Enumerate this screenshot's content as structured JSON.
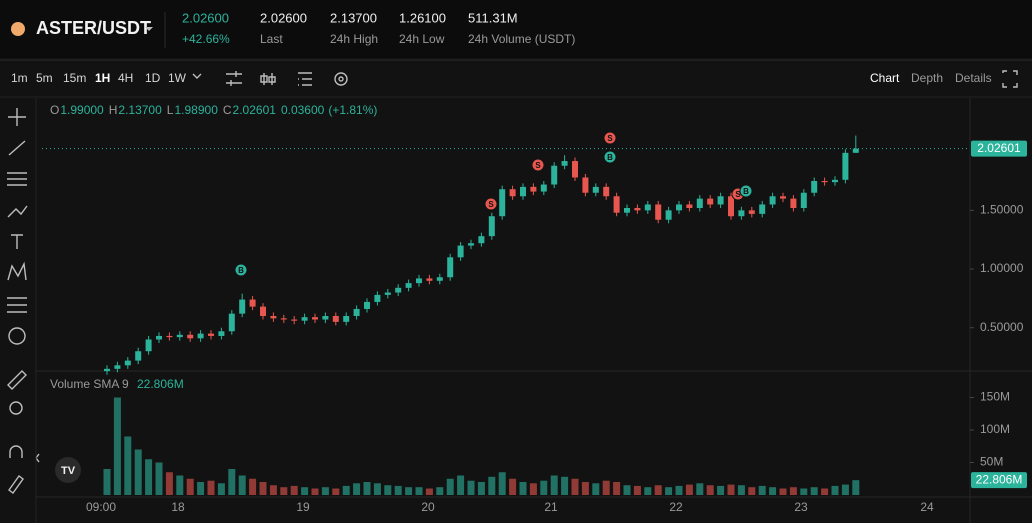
{
  "header": {
    "pair": "ASTER/USDT",
    "price": "2.02600",
    "change": "+42.66%",
    "stats": [
      {
        "value": "2.02600",
        "label": "Last"
      },
      {
        "value": "2.13700",
        "label": "24h High"
      },
      {
        "value": "1.26100",
        "label": "24h Low"
      },
      {
        "value": "511.31M",
        "label": "24h Volume (USDT)"
      }
    ]
  },
  "toolbar": {
    "intervals": [
      "1m",
      "5m",
      "15m",
      "1H",
      "4H",
      "1D",
      "1W"
    ],
    "views": [
      "Chart",
      "Depth",
      "Details"
    ]
  },
  "chart_data": {
    "type": "candlestick",
    "ohlc_legend": [
      {
        "key": "O",
        "value": "1.99000"
      },
      {
        "key": "H",
        "value": "2.13700"
      },
      {
        "key": "L",
        "value": "1.98900"
      },
      {
        "key": "C",
        "value": "2.02601"
      }
    ],
    "change": "0.03600",
    "change_pct": "(+1.81%)",
    "x_labels": [
      "09:00",
      "18",
      "19",
      "20",
      "21",
      "22",
      "23",
      "24"
    ],
    "open": [
      0.13,
      0.15,
      0.18,
      0.22,
      0.3,
      0.4,
      0.43,
      0.42,
      0.44,
      0.41,
      0.45,
      0.43,
      0.47,
      0.62,
      0.74,
      0.68,
      0.6,
      0.58,
      0.57,
      0.56,
      0.59,
      0.57,
      0.6,
      0.55,
      0.6,
      0.66,
      0.72,
      0.78,
      0.8,
      0.84,
      0.88,
      0.92,
      0.9,
      0.93,
      1.1,
      1.2,
      1.22,
      1.28,
      1.45,
      1.68,
      1.62,
      1.7,
      1.66,
      1.72,
      1.88,
      1.92,
      1.78,
      1.65,
      1.7,
      1.62,
      1.48,
      1.52,
      1.5,
      1.55,
      1.42,
      1.5,
      1.55,
      1.52,
      1.6,
      1.55,
      1.62,
      1.45,
      1.5,
      1.47,
      1.55,
      1.62,
      1.6,
      1.52,
      1.65,
      1.75,
      1.74,
      1.76,
      1.99
    ],
    "high": [
      0.18,
      0.21,
      0.25,
      0.33,
      0.43,
      0.46,
      0.46,
      0.47,
      0.47,
      0.48,
      0.48,
      0.5,
      0.65,
      0.79,
      0.77,
      0.71,
      0.63,
      0.61,
      0.6,
      0.62,
      0.62,
      0.63,
      0.63,
      0.63,
      0.69,
      0.75,
      0.81,
      0.83,
      0.87,
      0.91,
      0.95,
      0.95,
      0.96,
      1.13,
      1.23,
      1.25,
      1.31,
      1.48,
      1.71,
      1.71,
      1.73,
      1.73,
      1.75,
      1.91,
      1.97,
      1.95,
      1.81,
      1.73,
      1.73,
      1.65,
      1.55,
      1.55,
      1.58,
      1.58,
      1.53,
      1.58,
      1.58,
      1.63,
      1.63,
      1.65,
      1.65,
      1.53,
      1.53,
      1.58,
      1.65,
      1.65,
      1.63,
      1.68,
      1.78,
      1.78,
      1.79,
      2.02,
      2.137
    ],
    "low": [
      0.1,
      0.12,
      0.15,
      0.19,
      0.27,
      0.37,
      0.39,
      0.39,
      0.38,
      0.38,
      0.4,
      0.4,
      0.44,
      0.59,
      0.65,
      0.57,
      0.55,
      0.54,
      0.53,
      0.53,
      0.54,
      0.54,
      0.52,
      0.52,
      0.57,
      0.63,
      0.69,
      0.75,
      0.77,
      0.81,
      0.85,
      0.87,
      0.87,
      0.9,
      1.07,
      1.17,
      1.19,
      1.25,
      1.42,
      1.59,
      1.59,
      1.63,
      1.63,
      1.69,
      1.85,
      1.75,
      1.62,
      1.62,
      1.59,
      1.45,
      1.45,
      1.47,
      1.47,
      1.39,
      1.39,
      1.47,
      1.49,
      1.49,
      1.52,
      1.52,
      1.42,
      1.42,
      1.44,
      1.44,
      1.52,
      1.57,
      1.49,
      1.49,
      1.62,
      1.71,
      1.71,
      1.73,
      1.989
    ],
    "close": [
      0.15,
      0.18,
      0.22,
      0.3,
      0.4,
      0.43,
      0.42,
      0.44,
      0.41,
      0.45,
      0.43,
      0.47,
      0.62,
      0.74,
      0.68,
      0.6,
      0.58,
      0.57,
      0.56,
      0.59,
      0.57,
      0.6,
      0.55,
      0.6,
      0.66,
      0.72,
      0.78,
      0.8,
      0.84,
      0.88,
      0.92,
      0.9,
      0.93,
      1.1,
      1.2,
      1.22,
      1.28,
      1.45,
      1.68,
      1.62,
      1.7,
      1.66,
      1.72,
      1.88,
      1.92,
      1.78,
      1.65,
      1.7,
      1.62,
      1.48,
      1.52,
      1.5,
      1.55,
      1.42,
      1.5,
      1.55,
      1.52,
      1.6,
      1.55,
      1.62,
      1.45,
      1.5,
      1.47,
      1.55,
      1.62,
      1.6,
      1.52,
      1.65,
      1.75,
      1.74,
      1.76,
      1.99,
      2.02601
    ],
    "ylim": [
      0.14,
      2.44
    ],
    "yticks": [
      {
        "value": 0.5,
        "label": "0.50000"
      },
      {
        "value": 1.0,
        "label": "1.00000"
      },
      {
        "value": 1.5,
        "label": "1.50000"
      }
    ],
    "volume_title": "Volume SMA 9",
    "volume": [
      40,
      150,
      90,
      70,
      55,
      50,
      35,
      30,
      25,
      20,
      22,
      18,
      40,
      30,
      25,
      20,
      15,
      12,
      14,
      12,
      10,
      12,
      10,
      14,
      18,
      20,
      18,
      15,
      14,
      12,
      12,
      10,
      12,
      25,
      30,
      22,
      20,
      28,
      35,
      25,
      20,
      18,
      22,
      30,
      28,
      25,
      20,
      18,
      22,
      20,
      15,
      14,
      12,
      15,
      12,
      14,
      16,
      18,
      15,
      14,
      16,
      15,
      12,
      14,
      12,
      10,
      12,
      10,
      12,
      10,
      14,
      16,
      22.806
    ],
    "volume_value_label": "22.806M",
    "volume_lim": [
      0,
      180
    ],
    "volume_ticks": [
      {
        "value": 50,
        "label": "50M"
      },
      {
        "value": 100,
        "label": "100M"
      },
      {
        "value": 150,
        "label": "150M"
      }
    ],
    "trade_markers": [
      "B",
      "S",
      "S",
      "S",
      "B",
      "S",
      "B"
    ],
    "up_color": "#2bb39b",
    "down_color": "#e8574f",
    "grid": false
  }
}
